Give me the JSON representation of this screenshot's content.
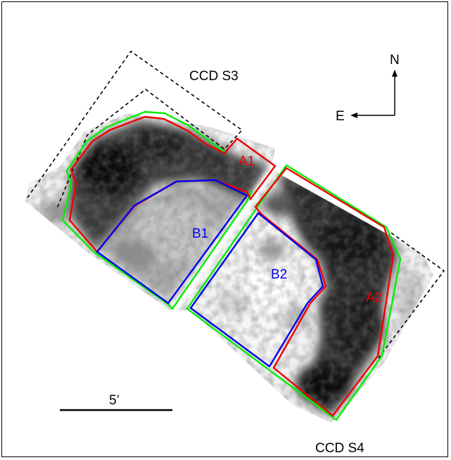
{
  "labels": {
    "ccd_top": "CCD S3",
    "ccd_bottom": "CCD S4",
    "north": "N",
    "east": "E",
    "scale": "5’",
    "region_a1": "A1",
    "region_a2": "A2",
    "region_b1": "B1",
    "region_b2": "B2"
  },
  "colors": {
    "region_a": "#ff0000",
    "region_b": "#0000ff",
    "chip_outline": "#00ff00",
    "ccd_boundary": "#000000"
  }
}
